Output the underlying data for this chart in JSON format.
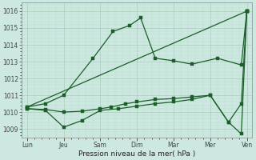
{
  "xlabel": "Pression niveau de la mer( hPa )",
  "bg_color": "#cce8e0",
  "grid_color_major": "#aaccb8",
  "grid_color_minor": "#bbddd0",
  "line_color": "#1a5e28",
  "ylim": [
    1008.5,
    1016.5
  ],
  "yticks": [
    1009,
    1010,
    1011,
    1012,
    1013,
    1014,
    1015,
    1016
  ],
  "x_labels": [
    "Lun",
    "Jeu",
    "Sam",
    "Dim",
    "Mar",
    "Mer",
    "Ven"
  ],
  "x_positions": [
    0,
    1,
    2,
    3,
    4,
    5,
    6
  ],
  "xlim": [
    -0.15,
    6.15
  ],
  "line1_x": [
    0,
    6
  ],
  "line1_y": [
    1010.3,
    1016.0
  ],
  "line2_x": [
    0,
    0.5,
    1.0,
    1.8,
    2.35,
    2.8,
    3.1,
    3.5,
    4.0,
    4.5,
    5.2,
    5.85,
    6.0
  ],
  "line2_y": [
    1010.3,
    1010.5,
    1011.0,
    1013.2,
    1014.8,
    1015.15,
    1015.6,
    1013.2,
    1013.05,
    1012.85,
    1013.2,
    1012.8,
    1016.0
  ],
  "line3_x": [
    0,
    0.5,
    1.0,
    1.5,
    2.0,
    2.5,
    3.0,
    3.5,
    4.0,
    4.5,
    5.0,
    5.5,
    5.85,
    6.0
  ],
  "line3_y": [
    1010.2,
    1010.1,
    1009.1,
    1009.5,
    1010.1,
    1010.2,
    1010.35,
    1010.5,
    1010.6,
    1010.75,
    1011.0,
    1009.4,
    1008.7,
    1016.0
  ],
  "line4_x": [
    0,
    0.5,
    1.0,
    1.5,
    2.0,
    2.3,
    2.7,
    3.0,
    3.5,
    4.0,
    4.5,
    5.0,
    5.5,
    5.85,
    6.0
  ],
  "line4_y": [
    1010.2,
    1010.15,
    1010.0,
    1010.05,
    1010.2,
    1010.3,
    1010.5,
    1010.6,
    1010.75,
    1010.8,
    1010.9,
    1011.0,
    1009.4,
    1010.5,
    1016.0
  ],
  "marker_size": 2.5
}
